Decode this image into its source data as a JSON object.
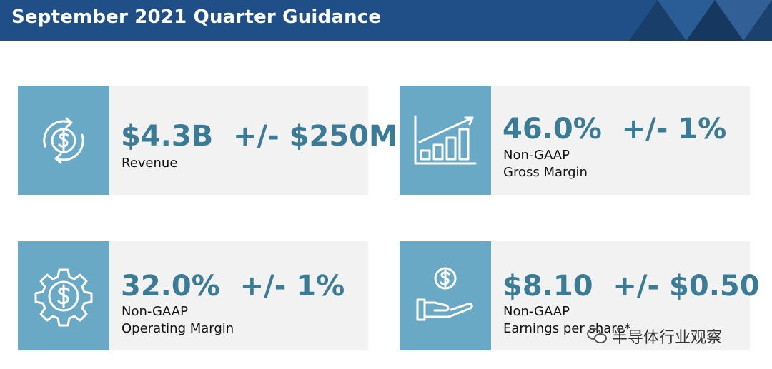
{
  "header": {
    "title": "September 2021 Quarter Guidance"
  },
  "cards": [
    {
      "value": "$4.3B  +/- $250M",
      "label_line1": "Revenue",
      "label_line2": "",
      "icon": "dollar-cycle-icon"
    },
    {
      "value": "46.0%  +/- 1%",
      "label_line1": "Non-GAAP",
      "label_line2": "Gross Margin",
      "icon": "bar-chart-growth-icon"
    },
    {
      "value": "32.0%  +/- 1%",
      "label_line1": "Non-GAAP",
      "label_line2": "Operating Margin",
      "icon": "dollar-gear-icon"
    },
    {
      "value": "$8.10  +/- $0.50",
      "label_line1": "Non-GAAP",
      "label_line2": "Earnings per share*",
      "icon": "hand-coin-icon"
    }
  ],
  "watermark": {
    "text": "半导体行业观察",
    "icon": "wechat-icon"
  },
  "colors": {
    "header": "#1f4f86",
    "icon_box": "#69a9c6",
    "card_bg": "#f2f2f2",
    "value_text": "#3b7b95"
  }
}
